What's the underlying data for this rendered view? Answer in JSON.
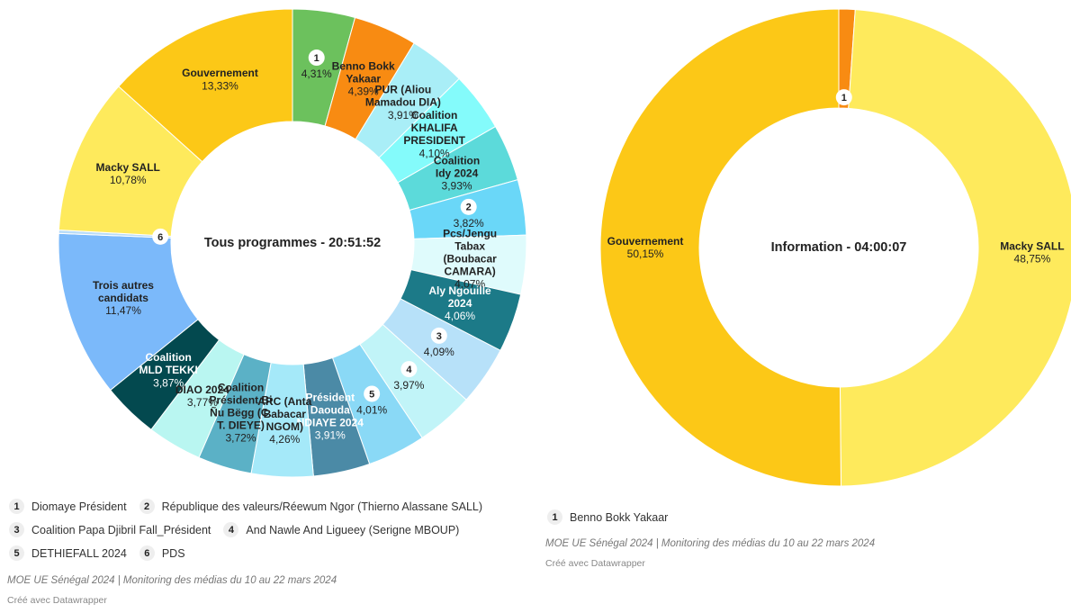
{
  "chart_data": [
    {
      "type": "pie",
      "center_label": "Tous programmes - 20:51:52",
      "categories": [
        "1",
        "Benno Bokk Yakaar",
        "PUR (Aliou Mamadou DIA)",
        "Coalition KHALIFA PRESIDENT",
        "Coalition Idy 2024",
        "2",
        "Pcs/Jengu Tabax (Boubacar CAMARA)",
        "Aly Ngouille 2024",
        "3",
        "4",
        "5",
        "Président Daouda NDIAYE 2024",
        "ARC (Anta Babacar NGOM)",
        "Coalition Président Bi Ñu Bëgg (C. T. DIEYE)",
        "DIAO 2024",
        "Coalition MLD TEKKI",
        "Trois autres candidats",
        "6",
        "Macky SALL",
        "Gouvernement"
      ],
      "values": [
        4.31,
        4.39,
        3.91,
        4.1,
        3.93,
        3.82,
        4.07,
        4.06,
        4.09,
        3.97,
        4.01,
        3.91,
        4.26,
        3.72,
        3.77,
        3.87,
        11.47,
        0.23,
        10.78,
        13.33
      ],
      "value_labels": [
        "4,31%",
        "4,39%",
        "3,91%",
        "4,10%",
        "3,93%",
        "3,82%",
        "4,07%",
        "4,06%",
        "4,09%",
        "3,97%",
        "4,01%",
        "3,91%",
        "4,26%",
        "3,72%",
        "3,77%",
        "3,87%",
        "11,47%",
        null,
        "10,78%",
        "13,33%"
      ],
      "colors": [
        "#6cc15d",
        "#f88b12",
        "#a9eef7",
        "#84fbfb",
        "#5cdada",
        "#6ad7f8",
        "#dffbfc",
        "#1c7a88",
        "#b7e1f9",
        "#c1f4f8",
        "#8ad9f6",
        "#4b8aa6",
        "#a5e9f9",
        "#5bb1c6",
        "#b9f6f1",
        "#03494f",
        "#7bb9fa",
        "#b9dcf7",
        "#feea5c",
        "#fcc817"
      ],
      "legend": [
        {
          "key": "1",
          "label": "Diomaye Président"
        },
        {
          "key": "2",
          "label": "République des valeurs/Réewum Ngor (Thierno Alassane SALL)"
        },
        {
          "key": "3",
          "label": "Coalition Papa Djibril Fall_Président"
        },
        {
          "key": "4",
          "label": "And Nawle And Ligueey (Serigne MBOUP)"
        },
        {
          "key": "5",
          "label": "DETHIEFALL 2024"
        },
        {
          "key": "6",
          "label": "PDS"
        }
      ],
      "source": "MOE UE Sénégal 2024 | Monitoring des médias du 10 au 22 mars 2024",
      "credit": "Créé avec Datawrapper"
    },
    {
      "type": "pie",
      "center_label": "Information - 04:00:07",
      "categories": [
        "1",
        "Macky SALL",
        "Gouvernement"
      ],
      "values": [
        1.1,
        48.75,
        50.15
      ],
      "value_labels": [
        null,
        "48,75%",
        "50,15%"
      ],
      "colors": [
        "#f88b12",
        "#feea5c",
        "#fcc817"
      ],
      "legend": [
        {
          "key": "1",
          "label": "Benno Bokk Yakaar"
        }
      ],
      "source": "MOE UE Sénégal 2024 | Monitoring des médias du 10 au 22 mars 2024",
      "credit": "Créé avec Datawrapper"
    }
  ]
}
